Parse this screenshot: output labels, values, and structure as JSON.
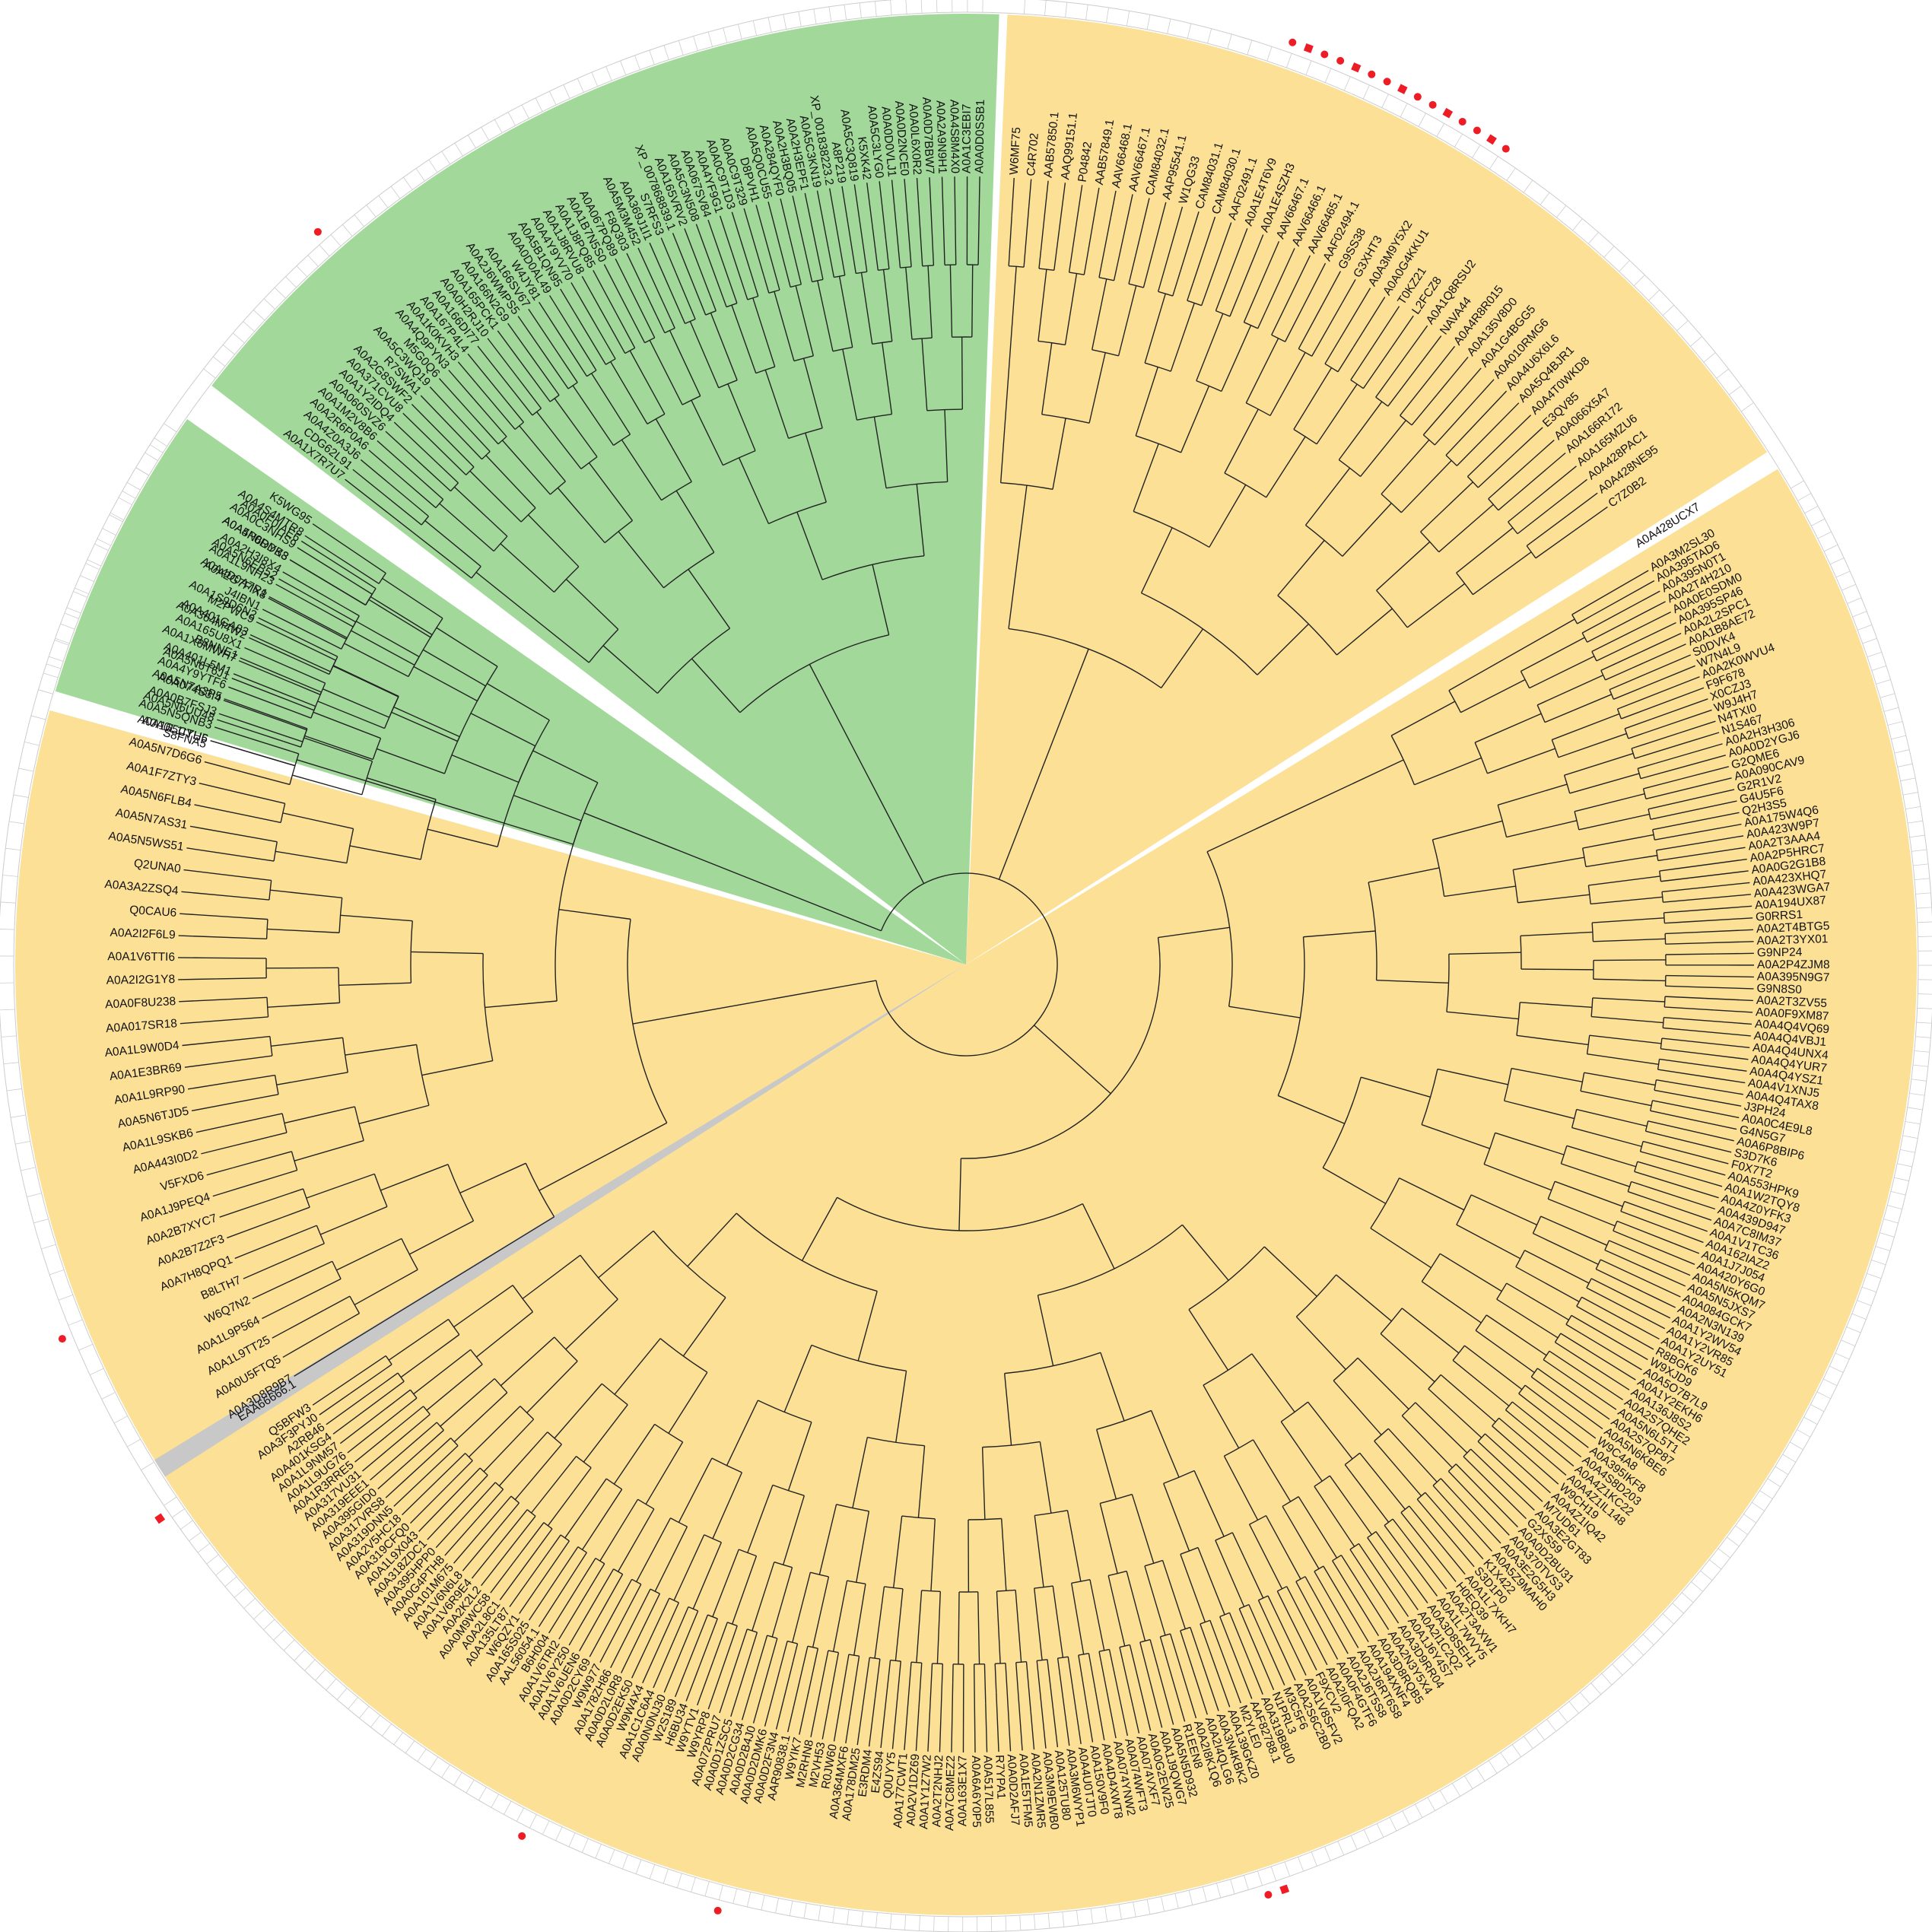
{
  "colors": {
    "clade_yellow": "#fbe096",
    "clade_green": "#a2d99b",
    "highlight_gray": "#c8c8c8",
    "marker_red": "#ee1c24",
    "ring_outline": "#cccccc",
    "branch": "#222222"
  },
  "tree": {
    "clade_a": {
      "color": "yellow",
      "labels": [
        "A0A0F0IAE6",
        "A0A5N6DYK3",
        "A0A5N6EB52",
        "A0A2G7FIX8",
        "A0A1S9D6N2",
        "A0A364M4W2",
        "B8NNE1",
        "A0A5N6T6J1",
        "A0A5N7A3P5",
        "A0A5N6UU48",
        "A0A0L1IYH5",
        "A0A5N7D6G6",
        "A0A1F7ZTY3",
        "A0A5N6FLB4",
        "A0A5N7AS31",
        "A0A5N5WS51",
        "Q2UNA0",
        "A0A3A2ZSQ4",
        "Q0CAU6",
        "A0A2I2F6L9",
        "A0A1V6TTI6",
        "A0A2I2G1Y8",
        "A0A0F8U238",
        "A0A017SR18",
        "A0A1L9W0D4",
        "A0A1E3BR69",
        "A0A1L9RP90",
        "A0A5N6TJD5",
        "A0A1L9SKB6",
        "A0A443I0D2",
        "V5FXD6",
        "A0A1J9PEQ4",
        "A0A2B7XYC7",
        "A0A2B7Z2F3",
        "A0A7H8QPQ1",
        "B8LTH7",
        "W6Q7N2",
        "A0A1L9P564",
        "A0A1L9TT25",
        "A0A0U5FTQ5",
        "A0A3D8R9B7"
      ]
    },
    "clade_a_highlight": {
      "label": "EAA66666.1",
      "color": "gray"
    },
    "clade_b": {
      "color": "yellow",
      "labels": [
        "Q5BFW3",
        "A0A3F3PYJ0",
        "A2RB46",
        "A0A401KSG4",
        "A0A1L9NM57",
        "A0A1L9UG76",
        "A0A1R3RRE5",
        "A0A317VU31",
        "A0A319EEE1",
        "A0A395GID0",
        "A0A317VRS8",
        "A0A319DNN5",
        "A0A2V5HC18",
        "A0A319CFQ0",
        "A0A1L9X043",
        "A0A318ZDC1",
        "A0A395HPP0",
        "A0A0G4PTH8",
        "A0A101M675",
        "A0A1V6N6L8",
        "A0A1V6R9E4",
        "A0A2K2L2",
        "A0A0M9WC58",
        "A0A2L8C1",
        "A0A135LT87",
        "W6QZY1",
        "A0A165S025",
        "AAL56054.1",
        "B6H004",
        "A0A1V6TRI2",
        "A0A1V6Y250",
        "A0A1V6UEN6",
        "A0A0D2CY69",
        "W9W977",
        "A0A178ZH86",
        "A0A0D2L0R8",
        "A0A0D2EK50",
        "W9W4X4",
        "A0A1C1C6A4",
        "A0A0N0NJ30",
        "W2S189",
        "H6BU34",
        "W9YTV1",
        "W9YRP8",
        "A0A072PRU7",
        "A0A0D1ZSC5",
        "A0A0D2CG34",
        "A0A0D2B4J0",
        "A0A0D2DMK6",
        "A0A0D2F3N4",
        "AAR90838.1",
        "W9YIK7",
        "M2RHN8",
        "M2VH53",
        "R0JW60",
        "A0A364MXF6",
        "A0A178DM25",
        "E3RDM4",
        "E4ZS94",
        "Q0UYY5",
        "A0A177CWT1",
        "A0A2V1DZ69",
        "A0A1Y1Z7W2",
        "A0A2T2NHJ2",
        "A0A7C8MEZ2",
        "A0A163E1X7",
        "A0A6A6Y0P5",
        "A0A517L855",
        "R7YPA1",
        "A0A0D2AFJ7",
        "A0A1E5TFM5",
        "A0A2N1ZMR5",
        "A0A3M9EWB0",
        "A0A125TU80",
        "A0A3M6WYP1",
        "A0A4U0TJT0",
        "A0A150V9F0",
        "A0A4D4XWT8",
        "A0A074YNW2",
        "A0A074WFT3",
        "A0A074VXF7",
        "A0A0G2EW25",
        "A0A1J9QWG7",
        "A0A5N5D932",
        "R1EEN8",
        "A0A2I8K1Q6",
        "A0A2I4QLG6",
        "A0A3N4KBK2",
        "A0A139GKZ0",
        "M2YLE0",
        "AAF82788.1",
        "A0A319B8U0",
        "N1PRL3",
        "M3C5F6",
        "A0A2S6C2B0",
        "A0A1V8SFV2",
        "F9XCV2",
        "A0A2I0FQA2",
        "A0A0F4GTF6",
        "A0A2J6T5S8",
        "A0A2J6RT6S8",
        "A0A194XNF4",
        "A0A3D8RQB5",
        "A0A2N3Y5X4",
        "A0A3D9RR04",
        "A0A1J6Y4S7",
        "A0A2I1C2Q2",
        "A0A3D8SEH1",
        "A0A1L7WVY5",
        "A0A2T3AXW1",
        "H0EQ39",
        "A0A1L7XKH7",
        "S3D1P0",
        "K1X422",
        "A0A5Z9MAH0",
        "A0A3E2G5H3",
        "A0A370TVS3",
        "A0A0D2BU31",
        "G2XS59",
        "A0A3E2GT83",
        "M7UD61",
        "A0A4Z1IQ42",
        "W9CH19",
        "A0A4Z1IL148",
        "A0A4Z1KC22",
        "A0A4S8D203",
        "A0A395IKF8",
        "W9C4A8",
        "A0A5N6KBE6",
        "A0A2S7QP87",
        "A0A5N6L5T1",
        "A0A2S7QHE2",
        "A0A136J8S2",
        "A0A1Y2EKH6",
        "A0A5O7B7L9",
        "W9XJD9",
        "R8BGK6",
        "A0A1Y2UY51",
        "A0A1Y2VR85",
        "A0A1Y2WV54",
        "A0A2N3N139",
        "A0A084GCK7",
        "A0A5N5JXS7",
        "A0A5N5KQM7",
        "A0A420Y6G0",
        "A0A1J7J054",
        "A0A162IAZ2",
        "A0A1V1TC36",
        "A0A7C8IM37",
        "A0A439D947",
        "A0A4Z0YFK3",
        "A0A1W2TQY8",
        "A0A553HPK9",
        "F0X7T2",
        "S3D7K6",
        "A0A6P8BIP6",
        "G4N5G7",
        "A0A0C4E9L8",
        "J3PH24",
        "A0A4Q4TAX8",
        "A0A4V1XNJ5",
        "A0A4Q4YSZ1",
        "A0A4Q4YUR7",
        "A0A4Q4UNX4",
        "A0A4Q4VBJ1",
        "A0A4Q4VQ69",
        "A0A0F9XM87",
        "A0A2T3ZV55",
        "G9N8S0",
        "A0A395N9G7",
        "A0A2P4ZJM8",
        "G9NP24",
        "A0A2T3YX01",
        "A0A2T4BTG5",
        "G0RRS1",
        "A0A194UX87",
        "A0A423WGA7",
        "A0A423XHQ7",
        "A0A0G2G1B8",
        "A0A2P5HRC7",
        "A0A2T3AAA4",
        "A0A423W9P7",
        "A0A175W4Q6",
        "Q2H3S5",
        "G4U5F6",
        "G2R1V2",
        "A0A090CAV9",
        "G2QME6",
        "A0A0D2YGJ6",
        "A0A2H3H306",
        "N1S467",
        "N4TXI0",
        "W9J4H7",
        "X0CZJ3",
        "F9F678",
        "A0A2K0WVU4",
        "W7N4L9",
        "S0DVK4",
        "A0A1B8AE72",
        "A0A2L2SPC1",
        "A0A395SP46",
        "A0A0E0SDM0",
        "A0A2T4H210",
        "A0A395N0T1",
        "A0A395TAD6",
        "A0A3M2SL30"
      ]
    },
    "clade_b_highlight": {
      "label": "A0A428UCX7",
      "color": "white"
    },
    "clade_c": {
      "color": "yellow",
      "labels": [
        "C7Z0B2",
        "A0A428NE95",
        "A0A428PAC1",
        "A0A165MZU6",
        "A0A166R172",
        "A0A066X5A7",
        "E3QV85",
        "A0A4T0WKD8",
        "A0A5Q4BJR1",
        "A0A4U6X6L6",
        "A0A010RMG6",
        "A0A1G4BGG5",
        "A0A135V8D0",
        "A0A4R8R015",
        "NAVA44",
        "A0A1Q8RSU2",
        "L2FCZ8",
        "T0KZ21",
        "A0A0G4KKU1",
        "A0A3M9Y5X2",
        "G3XHT3",
        "G9SS38",
        "AAF02494.1",
        "AAV66465.1",
        "AAV66466.1",
        "AAV66467.1",
        "A0A1E4SZH3",
        "A0A1E4T6V9",
        "AAF02491.1",
        "CAM84030.1",
        "CAM84031.1",
        "W1QG33",
        "AAP95541.1",
        "CAM84032.1",
        "AAV66467.1",
        "AAV66468.1",
        "AAB57849.1",
        "P04842",
        "AAQ99151.1",
        "AAB57850.1",
        "C4R702",
        "W6MF75"
      ]
    },
    "clade_d": {
      "color": "green",
      "labels": [
        "A0A0D0SSB1",
        "A0A1C3EBI7",
        "A0A4S8M4X0",
        "A0A2A9N9H1",
        "A0A0D7BBW7",
        "A0A0L6X0R2",
        "A0A0D2NCE0",
        "A0A0D0VLJ1",
        "A0A5C3LYG0",
        "K5XK42",
        "A0A5C3Q819",
        "A8P219",
        "XP_001838223.2",
        "A0A5C3KN19",
        "A0A2H3EPF1",
        "A0A2H3BQ05",
        "A0A284QYF0",
        "A0A5Q0CU55",
        "D8PVH1",
        "A0A0C9T329",
        "A0A0C9T1D3",
        "A0A4YF9G1",
        "A0A067SV84",
        "A0A5C3N508",
        "A0A165VRV2",
        "XP_007868839.1",
        "S7RFS3",
        "A0A369J1I1",
        "A0A5M3M452",
        "F8Q303",
        "A0A067PQ89",
        "A0A1B7N5S0",
        "A0A1J8PQ85",
        "A0A1J8RVU8",
        "A0A4Y9YV70",
        "A0A5B1QN95",
        "A0A0D0AL49",
        "W4JY81",
        "A0A166SV67",
        "A0A2J6WMPS5",
        "A0A166N2G9",
        "A0A165PCK1",
        "A0A0H2RJ10",
        "A0A166DI77",
        "A0A167P4L4",
        "A0A1K0KVH3",
        "A0A4Q9PYN3",
        "M5G0Q6",
        "A0A5C3WQ19",
        "R7SWA1",
        "A0A2G8SWF2",
        "A0A371CVU8",
        "A0A1Y2IDQ4",
        "A0A060SVZ6",
        "A0A1M2V8B6",
        "A0A2R6P0A6",
        "A0A4Z0A3J6",
        "CDG62L91",
        "A0A1X7R7U7"
      ]
    },
    "clade_e": {
      "color": "green",
      "labels": [
        "K5WG95",
        "A0A4S4MTR8",
        "A0A0C3NHS9",
        "A0A4P0RDB8",
        "A0A2H3I8X4",
        "A0A1L9NH23",
        "A0A4D0A7R1",
        "J4IBN1",
        "M2PWC9",
        "A0A401GA83",
        "A0A165U8X1",
        "A0A1X6MWH7",
        "A0A401L5M1",
        "A0A4Y9YTF6",
        "A0A074S3I4",
        "A0A0B7FSJ3",
        "A0A5N5QNB3",
        "A0A165CTU6"
      ]
    },
    "clade_e_highlight": {
      "label": "S8FNA5",
      "color": "white"
    }
  }
}
